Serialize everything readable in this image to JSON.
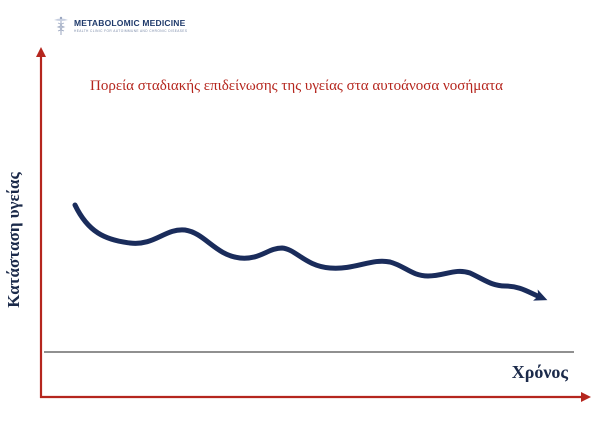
{
  "logo": {
    "name": "METABOLOMIC MEDICINE",
    "tagline": "HEALTH CLINIC FOR AUTOIMMUNE AND CHRONIC DISEASES"
  },
  "diagram": {
    "title": "Πορεία σταδιακής επιδείνωσης της υγείας στα αυτοάνοσα νοσήματα",
    "y_axis_label": "Κατάσταση υγείας",
    "x_axis_label": "Χρόνος"
  },
  "colors": {
    "axis": "#b5261e",
    "curve": "#1a2c5b",
    "baseline": "#222222",
    "title": "#b5261e",
    "labels": "#1b2a4a"
  }
}
